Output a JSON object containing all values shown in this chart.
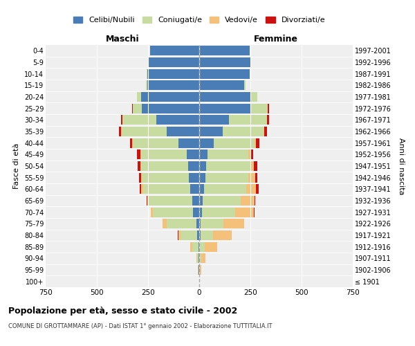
{
  "age_groups": [
    "100+",
    "95-99",
    "90-94",
    "85-89",
    "80-84",
    "75-79",
    "70-74",
    "65-69",
    "60-64",
    "55-59",
    "50-54",
    "45-49",
    "40-44",
    "35-39",
    "30-34",
    "25-29",
    "20-24",
    "15-19",
    "10-14",
    "5-9",
    "0-4"
  ],
  "birth_years": [
    "≤ 1901",
    "1902-1906",
    "1907-1911",
    "1912-1916",
    "1917-1921",
    "1922-1926",
    "1927-1931",
    "1932-1936",
    "1937-1941",
    "1942-1946",
    "1947-1951",
    "1952-1956",
    "1957-1961",
    "1962-1966",
    "1967-1971",
    "1972-1976",
    "1977-1981",
    "1982-1986",
    "1987-1991",
    "1992-1996",
    "1997-2001"
  ],
  "males": {
    "celibe": [
      0,
      2,
      2,
      5,
      10,
      15,
      30,
      35,
      45,
      50,
      55,
      60,
      100,
      160,
      210,
      280,
      285,
      255,
      255,
      250,
      240
    ],
    "coniugato": [
      0,
      3,
      8,
      30,
      80,
      145,
      195,
      210,
      230,
      230,
      230,
      225,
      225,
      220,
      165,
      45,
      18,
      4,
      2,
      1,
      0
    ],
    "vedovo": [
      0,
      1,
      2,
      8,
      12,
      18,
      10,
      10,
      8,
      5,
      3,
      3,
      2,
      1,
      1,
      0,
      0,
      0,
      0,
      0,
      0
    ],
    "divorziato": [
      0,
      0,
      0,
      1,
      2,
      2,
      2,
      3,
      8,
      8,
      12,
      15,
      12,
      10,
      6,
      2,
      1,
      0,
      0,
      0,
      0
    ]
  },
  "females": {
    "nubile": [
      0,
      2,
      3,
      4,
      6,
      8,
      12,
      18,
      25,
      30,
      35,
      40,
      70,
      115,
      145,
      250,
      255,
      220,
      245,
      250,
      245
    ],
    "coniugata": [
      0,
      2,
      7,
      22,
      60,
      110,
      165,
      185,
      205,
      210,
      215,
      200,
      200,
      200,
      185,
      85,
      28,
      7,
      2,
      1,
      0
    ],
    "vedova": [
      1,
      5,
      20,
      62,
      92,
      100,
      90,
      68,
      48,
      32,
      18,
      10,
      8,
      4,
      2,
      1,
      0,
      0,
      0,
      0,
      0
    ],
    "divorziata": [
      0,
      0,
      0,
      1,
      2,
      3,
      3,
      4,
      12,
      12,
      15,
      15,
      15,
      12,
      8,
      4,
      2,
      0,
      0,
      0,
      0
    ]
  },
  "xlim": 750,
  "title": "Popolazione per età, sesso e stato civile - 2002",
  "subtitle": "COMUNE DI GROTTAMMARE (AP) - Dati ISTAT 1° gennaio 2002 - Elaborazione TUTTITALIA.IT",
  "ylabel_left": "Fasce di età",
  "ylabel_right": "Anni di nascita",
  "xlabel_left": "Maschi",
  "xlabel_right": "Femmine",
  "legend_labels": [
    "Celibi/Nubili",
    "Coniugati/e",
    "Vedovi/e",
    "Divorziati/e"
  ],
  "bg_color": "#efefef",
  "bar_color_blue": "#4a7cb5",
  "bar_color_green": "#c8dba0",
  "bar_color_orange": "#f5c07a",
  "bar_color_red": "#cc1111"
}
